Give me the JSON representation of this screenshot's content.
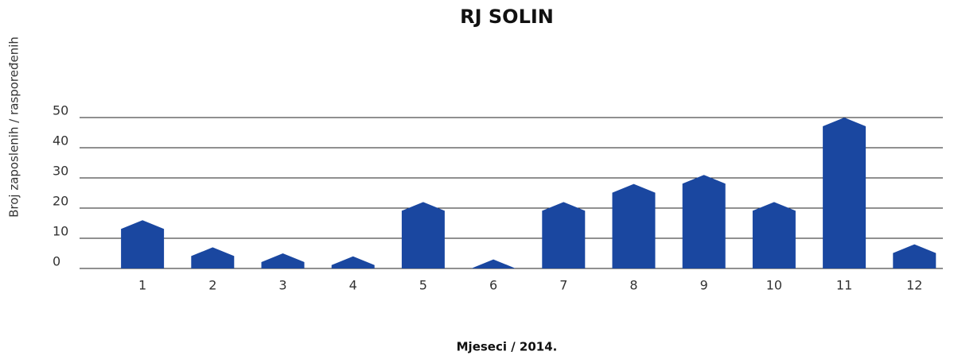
{
  "chart_data": {
    "type": "bar",
    "title": "RJ SOLIN",
    "x_label": "Mjeseci / 2014.",
    "y_label": "Broj zaposlenih / raspoređenih",
    "categories": [
      "1",
      "2",
      "3",
      "4",
      "5",
      "6",
      "7",
      "8",
      "9",
      "10",
      "11",
      "12"
    ],
    "values": [
      16,
      7,
      5,
      4,
      22,
      3,
      22,
      28,
      31,
      22,
      50,
      8
    ],
    "color": "#1a47a0",
    "ylim": [
      0,
      50
    ],
    "yticks": [
      0,
      10,
      20,
      30,
      40,
      50
    ],
    "grid": true
  }
}
